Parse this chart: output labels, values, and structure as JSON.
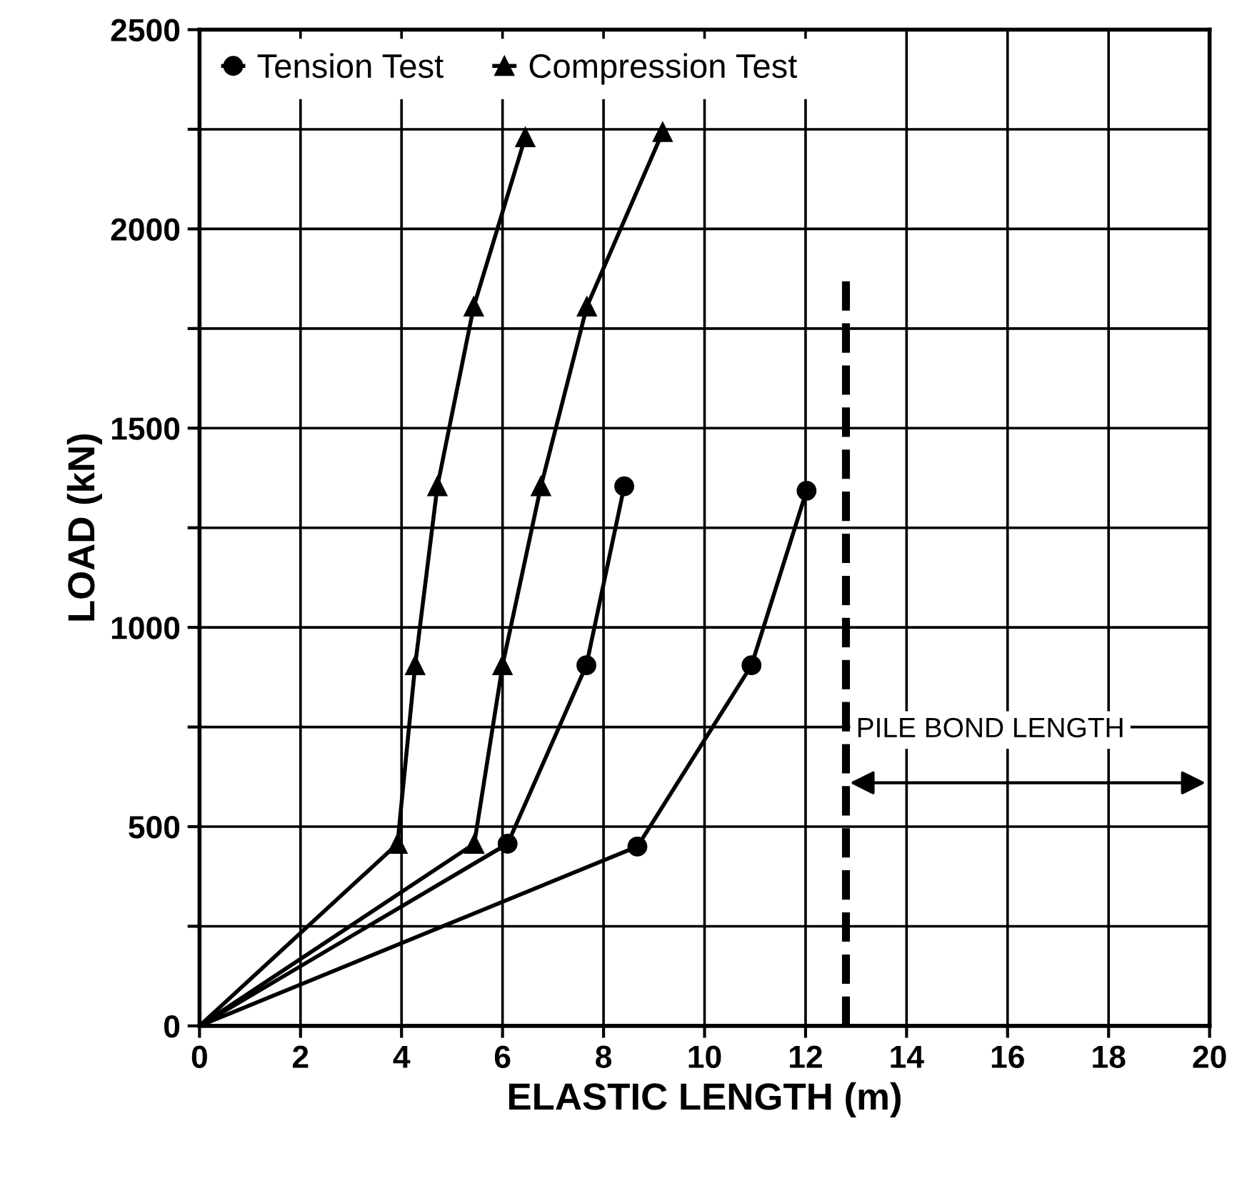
{
  "chart_data": {
    "type": "line",
    "xlabel": "ELASTIC LENGTH (m)",
    "ylabel": "LOAD (kN)",
    "xlim": [
      0,
      20
    ],
    "xticks": [
      0,
      2,
      4,
      6,
      8,
      10,
      12,
      14,
      16,
      18,
      20
    ],
    "ylim": [
      0,
      2500
    ],
    "yticks": [
      0,
      {
        "value": 250,
        "label": null
      },
      500,
      {
        "value": 750,
        "label": null
      },
      1000,
      {
        "value": 1250,
        "label": null
      },
      1500,
      {
        "value": 1750,
        "label": null
      },
      2000,
      {
        "value": 2250,
        "label": null
      },
      2500
    ],
    "grid": true,
    "legend": "top left",
    "line_style": "solid",
    "series": [
      {
        "name": "Tension Test",
        "color": "#000000",
        "marker": "circle",
        "x": [
          0,
          6.1,
          7.66,
          8.41
        ],
        "values": [
          0,
          457,
          905,
          1354
        ]
      },
      {
        "color": "#000000",
        "marker": "circle",
        "x": [
          0,
          8.67,
          10.93,
          12.02
        ],
        "values": [
          0,
          450,
          905,
          1343
        ]
      },
      {
        "name": "Compression Test",
        "color": "#000000",
        "marker": "triangle",
        "x": [
          0,
          3.92,
          4.27,
          4.71,
          5.43,
          6.45
        ],
        "values": [
          0,
          457,
          905,
          1354,
          1805,
          2230
        ]
      },
      {
        "color": "#000000",
        "marker": "triangle",
        "x": [
          0,
          5.44,
          6.0,
          6.76,
          7.67,
          9.17
        ],
        "values": [
          0,
          457,
          905,
          1354,
          1805,
          2243
        ]
      }
    ],
    "ref_lines": [
      {
        "axis": "x",
        "value": 12.8,
        "line_style": "dashed",
        "color": "#000000"
      }
    ],
    "annotations": [
      {
        "text": "PILE BOND LENGTH",
        "x": 12.8,
        "y": 610
      }
    ]
  }
}
